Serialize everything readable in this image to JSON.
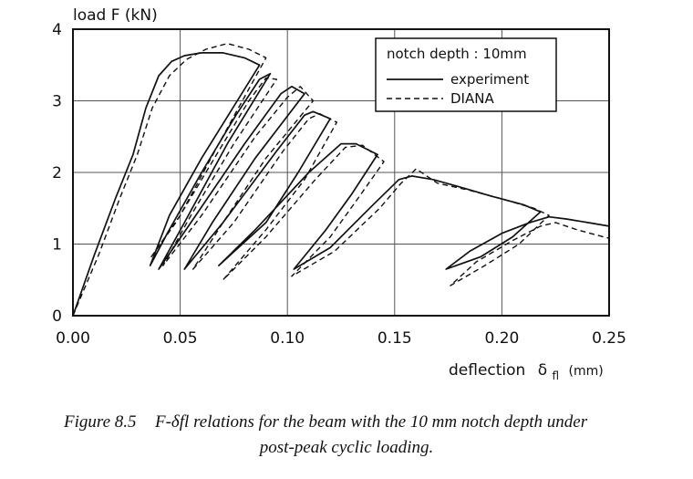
{
  "chart_data": {
    "type": "line",
    "xlabel_main": "deflection",
    "xlabel_symbol": "δ",
    "xlabel_sub": "fl",
    "xlabel_unit": "(mm)",
    "ylabel": "load  F (kN)",
    "xlim": [
      0,
      0.25
    ],
    "ylim": [
      0,
      4
    ],
    "x_ticks": [
      "0.00",
      "0.05",
      "0.10",
      "0.15",
      "0.20",
      "0.25"
    ],
    "y_ticks": [
      "0",
      "1",
      "2",
      "3",
      "4"
    ],
    "grid": true,
    "legend": {
      "title": "notch  depth :  10mm",
      "position": "top-right",
      "entries": [
        "experiment",
        "DIANA"
      ]
    },
    "series": [
      {
        "name": "experiment",
        "style": "solid",
        "points": [
          [
            0.0,
            0.0
          ],
          [
            0.01,
            0.85
          ],
          [
            0.02,
            1.65
          ],
          [
            0.028,
            2.25
          ],
          [
            0.034,
            2.9
          ],
          [
            0.04,
            3.35
          ],
          [
            0.046,
            3.55
          ],
          [
            0.052,
            3.63
          ],
          [
            0.06,
            3.67
          ],
          [
            0.07,
            3.67
          ],
          [
            0.08,
            3.6
          ],
          [
            0.087,
            3.5
          ],
          [
            0.06,
            2.2
          ],
          [
            0.045,
            1.4
          ],
          [
            0.036,
            0.7
          ],
          [
            0.044,
            1.15
          ],
          [
            0.06,
            2.0
          ],
          [
            0.076,
            2.8
          ],
          [
            0.087,
            3.3
          ],
          [
            0.092,
            3.38
          ],
          [
            0.072,
            2.4
          ],
          [
            0.052,
            1.3
          ],
          [
            0.04,
            0.65
          ],
          [
            0.055,
            1.3
          ],
          [
            0.08,
            2.4
          ],
          [
            0.097,
            3.1
          ],
          [
            0.102,
            3.2
          ],
          [
            0.108,
            3.1
          ],
          [
            0.085,
            2.2
          ],
          [
            0.065,
            1.3
          ],
          [
            0.052,
            0.65
          ],
          [
            0.07,
            1.3
          ],
          [
            0.095,
            2.3
          ],
          [
            0.108,
            2.8
          ],
          [
            0.112,
            2.85
          ],
          [
            0.12,
            2.75
          ],
          [
            0.105,
            2.0
          ],
          [
            0.09,
            1.3
          ],
          [
            0.068,
            0.7
          ],
          [
            0.085,
            1.2
          ],
          [
            0.11,
            2.0
          ],
          [
            0.125,
            2.4
          ],
          [
            0.132,
            2.4
          ],
          [
            0.142,
            2.25
          ],
          [
            0.13,
            1.7
          ],
          [
            0.118,
            1.2
          ],
          [
            0.103,
            0.65
          ],
          [
            0.12,
            0.95
          ],
          [
            0.14,
            1.55
          ],
          [
            0.152,
            1.9
          ],
          [
            0.158,
            1.95
          ],
          [
            0.168,
            1.9
          ],
          [
            0.18,
            1.8
          ],
          [
            0.195,
            1.67
          ],
          [
            0.21,
            1.55
          ],
          [
            0.218,
            1.45
          ],
          [
            0.205,
            1.1
          ],
          [
            0.19,
            0.82
          ],
          [
            0.174,
            0.65
          ],
          [
            0.185,
            0.9
          ],
          [
            0.2,
            1.15
          ],
          [
            0.213,
            1.3
          ],
          [
            0.222,
            1.38
          ],
          [
            0.23,
            1.35
          ],
          [
            0.24,
            1.3
          ],
          [
            0.25,
            1.25
          ]
        ]
      },
      {
        "name": "DIANA",
        "style": "dashed",
        "points": [
          [
            0.0,
            0.0
          ],
          [
            0.012,
            0.85
          ],
          [
            0.022,
            1.65
          ],
          [
            0.03,
            2.25
          ],
          [
            0.037,
            2.9
          ],
          [
            0.045,
            3.35
          ],
          [
            0.053,
            3.58
          ],
          [
            0.062,
            3.72
          ],
          [
            0.072,
            3.8
          ],
          [
            0.082,
            3.72
          ],
          [
            0.09,
            3.6
          ],
          [
            0.068,
            2.4
          ],
          [
            0.05,
            1.4
          ],
          [
            0.036,
            0.8
          ],
          [
            0.048,
            1.3
          ],
          [
            0.066,
            2.2
          ],
          [
            0.082,
            3.0
          ],
          [
            0.09,
            3.32
          ],
          [
            0.095,
            3.3
          ],
          [
            0.075,
            2.4
          ],
          [
            0.055,
            1.4
          ],
          [
            0.042,
            0.7
          ],
          [
            0.06,
            1.4
          ],
          [
            0.085,
            2.5
          ],
          [
            0.1,
            3.05
          ],
          [
            0.106,
            3.2
          ],
          [
            0.112,
            3.0
          ],
          [
            0.09,
            2.2
          ],
          [
            0.07,
            1.3
          ],
          [
            0.056,
            0.65
          ],
          [
            0.075,
            1.3
          ],
          [
            0.098,
            2.3
          ],
          [
            0.11,
            2.75
          ],
          [
            0.115,
            2.82
          ],
          [
            0.123,
            2.7
          ],
          [
            0.108,
            1.9
          ],
          [
            0.09,
            1.2
          ],
          [
            0.07,
            0.5
          ],
          [
            0.09,
            1.1
          ],
          [
            0.113,
            1.9
          ],
          [
            0.127,
            2.35
          ],
          [
            0.135,
            2.38
          ],
          [
            0.145,
            2.15
          ],
          [
            0.132,
            1.6
          ],
          [
            0.12,
            1.1
          ],
          [
            0.102,
            0.55
          ],
          [
            0.122,
            0.9
          ],
          [
            0.143,
            1.5
          ],
          [
            0.153,
            1.85
          ],
          [
            0.16,
            2.05
          ],
          [
            0.17,
            1.85
          ],
          [
            0.185,
            1.75
          ],
          [
            0.2,
            1.63
          ],
          [
            0.215,
            1.5
          ],
          [
            0.222,
            1.4
          ],
          [
            0.208,
            1.0
          ],
          [
            0.192,
            0.7
          ],
          [
            0.176,
            0.42
          ],
          [
            0.188,
            0.75
          ],
          [
            0.205,
            1.05
          ],
          [
            0.218,
            1.25
          ],
          [
            0.225,
            1.3
          ],
          [
            0.235,
            1.2
          ],
          [
            0.245,
            1.12
          ],
          [
            0.25,
            1.08
          ]
        ]
      }
    ]
  },
  "caption": {
    "label": "Figure 8.5",
    "line1": "F-δfl relations for the beam with the 10 mm notch depth under",
    "line2": "post-peak cyclic loading."
  }
}
